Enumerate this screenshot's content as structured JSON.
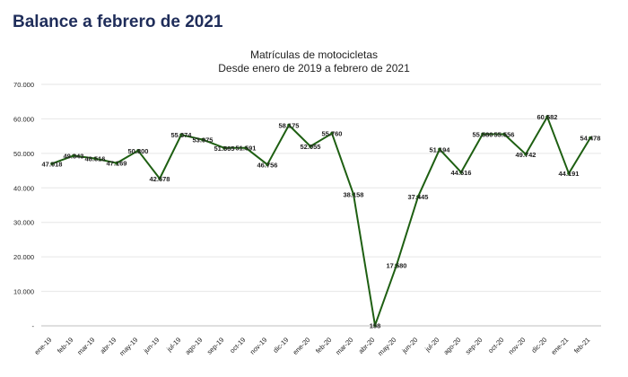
{
  "page": {
    "heading": "Balance a febrero de 2021"
  },
  "colors": {
    "heading": "#1f2d5a",
    "line": "#1e5f12",
    "grid": "#e6e6e6",
    "axis": "#bfbfbf",
    "text": "#222222"
  },
  "chart_data": {
    "type": "line",
    "title": "Matrículas de motocicletas",
    "subtitle": "Desde enero de 2019 a febrero de 2021",
    "xlabel": "",
    "ylabel": "",
    "ylim": [
      0,
      70000
    ],
    "yticks": [
      0,
      10000,
      20000,
      30000,
      40000,
      50000,
      60000,
      70000
    ],
    "ytick_labels": [
      "-",
      "10.000",
      "20.000",
      "30.000",
      "40.000",
      "50.000",
      "60.000",
      "70.000"
    ],
    "grid": true,
    "legend": "none",
    "categories": [
      "ene-19",
      "feb-19",
      "mar-19",
      "abr-19",
      "may-19",
      "jun-19",
      "jul-19",
      "ago-19",
      "sep-19",
      "oct-19",
      "nov-19",
      "dic-19",
      "ene-20",
      "feb-20",
      "mar-20",
      "abr-20",
      "may-20",
      "jun-20",
      "jul-20",
      "ago-20",
      "sep-20",
      "oct-20",
      "nov-20",
      "dic-20",
      "ene-21",
      "feb-21"
    ],
    "series": [
      {
        "values": [
          47018,
          49343,
          48516,
          47169,
          50800,
          42678,
          55374,
          53975,
          51565,
          51591,
          46756,
          58175,
          52055,
          55760,
          38158,
          158,
          17580,
          37445,
          51194,
          44516,
          55580,
          55556,
          49742,
          60582,
          44191,
          54478
        ],
        "data_labels": [
          "47.018",
          "49.343",
          "48.516",
          "47.169",
          "50.800",
          "42.678",
          "55.374",
          "53.975",
          "51.565",
          "51.591",
          "46.756",
          "58.175",
          "52.055",
          "55.760",
          "38.158",
          "158",
          "17.580",
          "37.445",
          "51.194",
          "44.516",
          "55.580",
          "55.556",
          "49.742",
          "60.582",
          "44.191",
          "54.478"
        ]
      }
    ]
  }
}
